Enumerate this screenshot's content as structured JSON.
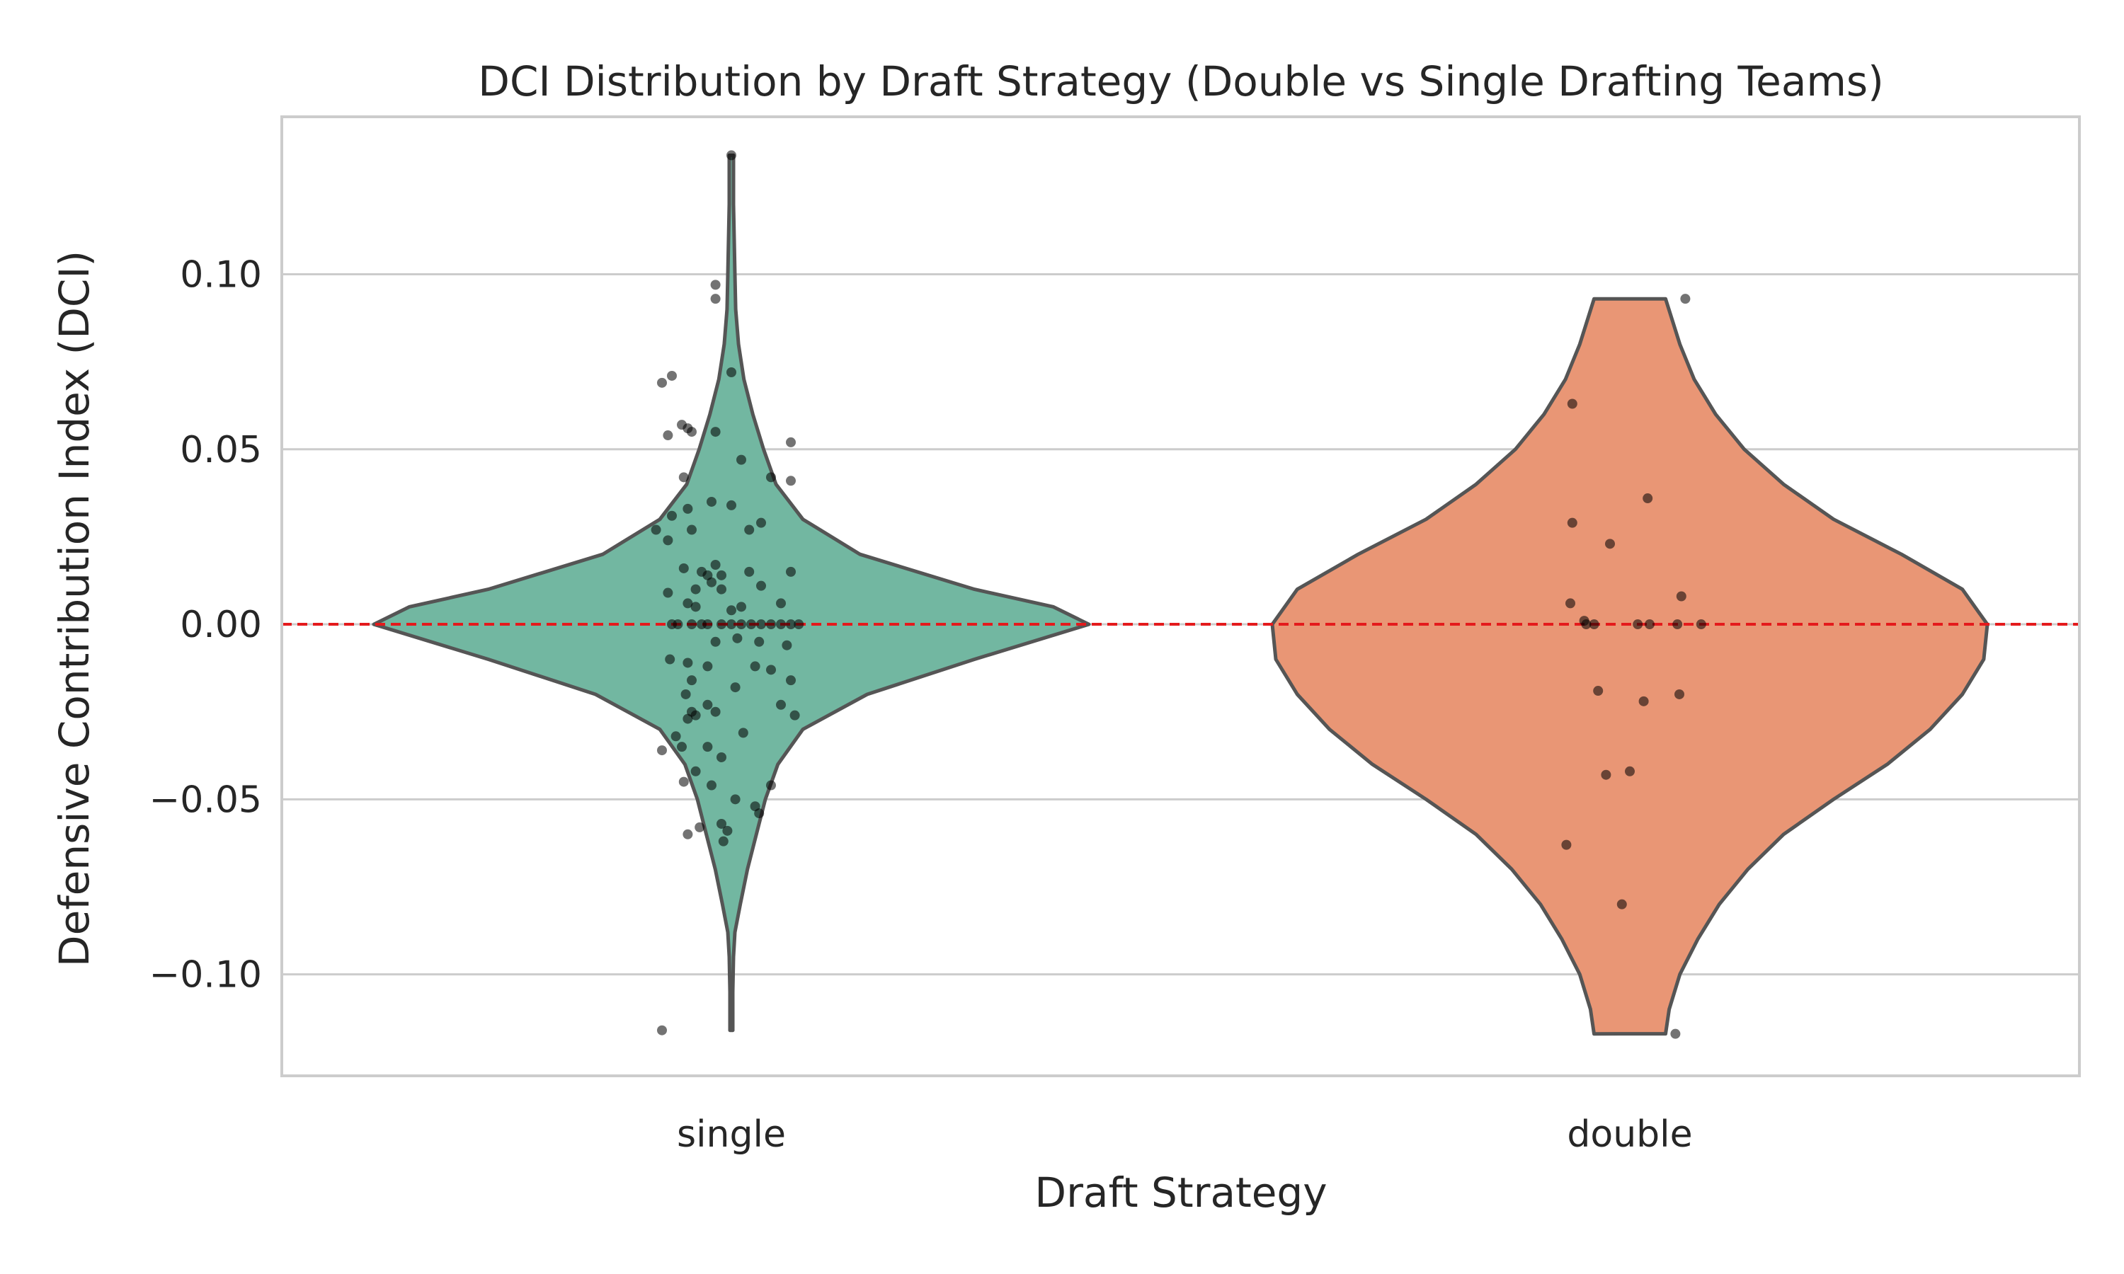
{
  "chart_data": {
    "type": "violin",
    "title": "DCI Distribution by Draft Strategy (Double vs Single Drafting Teams)",
    "xlabel": "Draft Strategy",
    "ylabel": "Defensive Contribution Index (DCI)",
    "ylim": [
      -0.129,
      0.145
    ],
    "yticks": [
      0.1,
      0.05,
      0.0,
      -0.05,
      -0.1
    ],
    "ytick_labels": [
      "0.10",
      "0.05",
      "0.00",
      "−0.05",
      "−0.10"
    ],
    "categories": [
      "single",
      "double"
    ],
    "grid": true,
    "reference_line": {
      "y": 0.0,
      "color": "#e41a1c",
      "style": "dashed"
    },
    "series": [
      {
        "category": "single",
        "color": "#72b7a1",
        "min": -0.116,
        "max": 0.134,
        "density": [
          [
            -0.116,
            0.004
          ],
          [
            -0.105,
            0.004
          ],
          [
            -0.095,
            0.006
          ],
          [
            -0.088,
            0.01
          ],
          [
            -0.08,
            0.025
          ],
          [
            -0.07,
            0.045
          ],
          [
            -0.06,
            0.07
          ],
          [
            -0.05,
            0.095
          ],
          [
            -0.04,
            0.13
          ],
          [
            -0.03,
            0.2
          ],
          [
            -0.02,
            0.38
          ],
          [
            -0.01,
            0.68
          ],
          [
            0.0,
            1.0
          ],
          [
            0.005,
            0.9
          ],
          [
            0.01,
            0.68
          ],
          [
            0.02,
            0.36
          ],
          [
            0.03,
            0.2
          ],
          [
            0.04,
            0.125
          ],
          [
            0.05,
            0.09
          ],
          [
            0.06,
            0.06
          ],
          [
            0.07,
            0.035
          ],
          [
            0.08,
            0.02
          ],
          [
            0.09,
            0.012
          ],
          [
            0.1,
            0.01
          ],
          [
            0.11,
            0.008
          ],
          [
            0.12,
            0.006
          ],
          [
            0.134,
            0.006
          ]
        ],
        "points": [
          [
            -0.35,
            -0.116
          ],
          [
            0.0,
            0.134
          ],
          [
            -0.08,
            0.097
          ],
          [
            -0.08,
            0.093
          ],
          [
            -0.35,
            0.069
          ],
          [
            -0.3,
            0.071
          ],
          [
            0.0,
            0.072
          ],
          [
            -0.32,
            0.054
          ],
          [
            -0.25,
            0.057
          ],
          [
            -0.22,
            0.056
          ],
          [
            -0.2,
            0.055
          ],
          [
            -0.08,
            0.055
          ],
          [
            0.3,
            0.052
          ],
          [
            0.05,
            0.047
          ],
          [
            0.3,
            0.041
          ],
          [
            0.2,
            0.042
          ],
          [
            -0.24,
            0.042
          ],
          [
            -0.3,
            0.031
          ],
          [
            -0.22,
            0.033
          ],
          [
            -0.1,
            0.035
          ],
          [
            0.0,
            0.034
          ],
          [
            -0.38,
            0.027
          ],
          [
            -0.32,
            0.024
          ],
          [
            -0.2,
            0.027
          ],
          [
            0.15,
            0.029
          ],
          [
            0.09,
            0.027
          ],
          [
            -0.24,
            0.016
          ],
          [
            -0.15,
            0.015
          ],
          [
            -0.12,
            0.014
          ],
          [
            -0.08,
            0.017
          ],
          [
            -0.05,
            0.014
          ],
          [
            0.09,
            0.015
          ],
          [
            0.3,
            0.015
          ],
          [
            -0.18,
            0.01
          ],
          [
            -0.1,
            0.012
          ],
          [
            -0.05,
            0.01
          ],
          [
            0.15,
            0.011
          ],
          [
            -0.32,
            0.009
          ],
          [
            -0.18,
            0.005
          ],
          [
            -0.22,
            0.006
          ],
          [
            0.0,
            0.004
          ],
          [
            0.05,
            0.005
          ],
          [
            0.25,
            0.006
          ],
          [
            -0.3,
            0.0
          ],
          [
            -0.27,
            0.0
          ],
          [
            -0.2,
            0.0
          ],
          [
            -0.15,
            0.0
          ],
          [
            -0.12,
            0.0
          ],
          [
            -0.05,
            0.0
          ],
          [
            0.0,
            0.0
          ],
          [
            0.05,
            0.0
          ],
          [
            0.1,
            0.0
          ],
          [
            0.15,
            0.0
          ],
          [
            0.2,
            0.0
          ],
          [
            0.25,
            0.0
          ],
          [
            0.3,
            0.0
          ],
          [
            0.34,
            0.0
          ],
          [
            -0.08,
            -0.005
          ],
          [
            0.03,
            -0.004
          ],
          [
            0.14,
            -0.005
          ],
          [
            0.28,
            -0.006
          ],
          [
            -0.31,
            -0.01
          ],
          [
            -0.22,
            -0.011
          ],
          [
            -0.12,
            -0.012
          ],
          [
            0.12,
            -0.012
          ],
          [
            0.2,
            -0.013
          ],
          [
            -0.2,
            -0.016
          ],
          [
            0.02,
            -0.018
          ],
          [
            0.3,
            -0.016
          ],
          [
            -0.23,
            -0.02
          ],
          [
            -0.2,
            -0.025
          ],
          [
            -0.12,
            -0.023
          ],
          [
            -0.08,
            -0.025
          ],
          [
            0.25,
            -0.023
          ],
          [
            0.32,
            -0.026
          ],
          [
            -0.22,
            -0.027
          ],
          [
            -0.18,
            -0.026
          ],
          [
            -0.28,
            -0.032
          ],
          [
            -0.25,
            -0.035
          ],
          [
            -0.12,
            -0.035
          ],
          [
            0.06,
            -0.031
          ],
          [
            -0.35,
            -0.036
          ],
          [
            -0.05,
            -0.038
          ],
          [
            -0.18,
            -0.042
          ],
          [
            -0.24,
            -0.045
          ],
          [
            -0.1,
            -0.046
          ],
          [
            0.2,
            -0.046
          ],
          [
            0.02,
            -0.05
          ],
          [
            0.12,
            -0.052
          ],
          [
            0.14,
            -0.054
          ],
          [
            -0.05,
            -0.057
          ],
          [
            -0.16,
            -0.058
          ],
          [
            -0.22,
            -0.06
          ],
          [
            -0.02,
            -0.059
          ],
          [
            -0.04,
            -0.062
          ]
        ]
      },
      {
        "category": "double",
        "color": "#e99675",
        "min": -0.117,
        "max": 0.093,
        "density": [
          [
            -0.117,
            0.1
          ],
          [
            -0.11,
            0.11
          ],
          [
            -0.1,
            0.14
          ],
          [
            -0.09,
            0.19
          ],
          [
            -0.08,
            0.25
          ],
          [
            -0.07,
            0.33
          ],
          [
            -0.06,
            0.43
          ],
          [
            -0.05,
            0.57
          ],
          [
            -0.04,
            0.72
          ],
          [
            -0.03,
            0.84
          ],
          [
            -0.02,
            0.93
          ],
          [
            -0.01,
            0.99
          ],
          [
            0.0,
            1.0
          ],
          [
            0.01,
            0.93
          ],
          [
            0.02,
            0.76
          ],
          [
            0.03,
            0.57
          ],
          [
            0.04,
            0.43
          ],
          [
            0.05,
            0.32
          ],
          [
            0.06,
            0.24
          ],
          [
            0.07,
            0.18
          ],
          [
            0.08,
            0.14
          ],
          [
            0.093,
            0.1
          ]
        ],
        "points": [
          [
            0.28,
            0.093
          ],
          [
            -0.29,
            0.063
          ],
          [
            0.09,
            0.036
          ],
          [
            -0.29,
            0.029
          ],
          [
            -0.1,
            0.023
          ],
          [
            0.26,
            0.008
          ],
          [
            -0.3,
            0.006
          ],
          [
            -0.23,
            0.001
          ],
          [
            -0.18,
            0.0
          ],
          [
            0.04,
            0.0
          ],
          [
            0.1,
            0.0
          ],
          [
            0.24,
            0.0
          ],
          [
            0.36,
            0.0
          ],
          [
            -0.22,
            0.0
          ],
          [
            -0.16,
            -0.019
          ],
          [
            0.07,
            -0.022
          ],
          [
            0.25,
            -0.02
          ],
          [
            -0.12,
            -0.043
          ],
          [
            0.0,
            -0.042
          ],
          [
            -0.32,
            -0.063
          ],
          [
            -0.04,
            -0.08
          ],
          [
            0.23,
            -0.117
          ]
        ]
      }
    ]
  }
}
